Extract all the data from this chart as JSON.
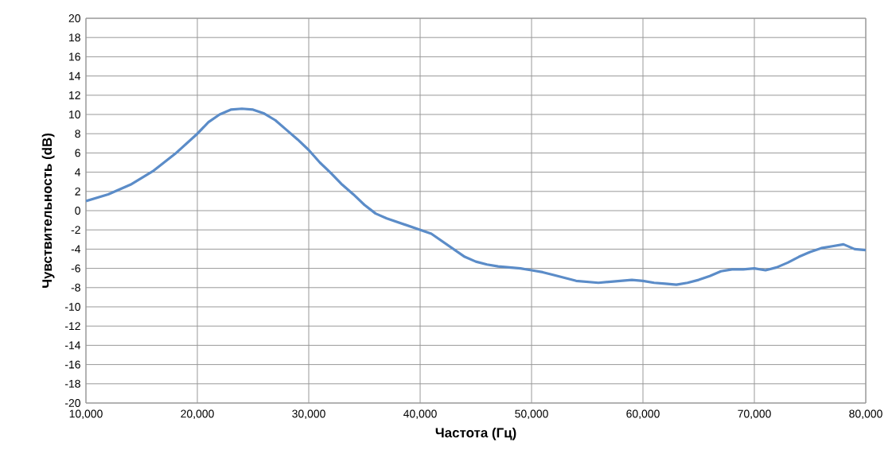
{
  "chart_data": {
    "type": "line",
    "xlabel": "Частота (Гц)",
    "ylabel": "Чувствительность (dB)",
    "x": [
      10000,
      12000,
      14000,
      16000,
      18000,
      20000,
      21000,
      22000,
      23000,
      24000,
      25000,
      26000,
      27000,
      28000,
      29000,
      30000,
      31000,
      32000,
      33000,
      34000,
      35000,
      36000,
      37000,
      38000,
      39000,
      40000,
      41000,
      42000,
      43000,
      44000,
      45000,
      46000,
      47000,
      48000,
      49000,
      50000,
      51000,
      52000,
      53000,
      54000,
      55000,
      56000,
      57000,
      58000,
      59000,
      60000,
      61000,
      62000,
      63000,
      64000,
      65000,
      66000,
      67000,
      68000,
      69000,
      70000,
      71000,
      72000,
      73000,
      74000,
      75000,
      76000,
      77000,
      78000,
      79000,
      80000
    ],
    "series": [
      {
        "color": "#5b8cc8",
        "values": [
          1.0,
          1.7,
          2.7,
          4.1,
          5.9,
          8.0,
          9.2,
          10.0,
          10.5,
          10.6,
          10.5,
          10.1,
          9.4,
          8.4,
          7.4,
          6.3,
          5.0,
          3.9,
          2.7,
          1.7,
          0.6,
          -0.3,
          -0.8,
          -1.2,
          -1.6,
          -2.0,
          -2.4,
          -3.2,
          -4.0,
          -4.8,
          -5.3,
          -5.6,
          -5.8,
          -5.9,
          -6.0,
          -6.2,
          -6.4,
          -6.7,
          -7.0,
          -7.3,
          -7.4,
          -7.5,
          -7.4,
          -7.3,
          -7.2,
          -7.3,
          -7.5,
          -7.6,
          -7.7,
          -7.5,
          -7.2,
          -6.8,
          -6.3,
          -6.1,
          -6.1,
          -6.0,
          -6.2,
          -5.9,
          -5.4,
          -4.8,
          -4.3,
          -3.9,
          -3.7,
          -3.5,
          -4.0,
          -4.1
        ]
      }
    ],
    "xlim": [
      10000,
      80000
    ],
    "xticks": [
      {
        "value": 10000,
        "label": "10,000"
      },
      {
        "value": 20000,
        "label": "20,000"
      },
      {
        "value": 30000,
        "label": "30,000"
      },
      {
        "value": 40000,
        "label": "40,000"
      },
      {
        "value": 50000,
        "label": "50,000"
      },
      {
        "value": 60000,
        "label": "60,000"
      },
      {
        "value": 70000,
        "label": "70,000"
      },
      {
        "value": 80000,
        "label": "80,000"
      }
    ],
    "ylim": [
      -20,
      20
    ],
    "yticks": [
      -20,
      -18,
      -16,
      -14,
      -12,
      -10,
      -8,
      -6,
      -4,
      -2,
      0,
      2,
      4,
      6,
      8,
      10,
      12,
      14,
      16,
      18,
      20
    ],
    "grid": true,
    "marker": "none",
    "line_style": "solid"
  }
}
